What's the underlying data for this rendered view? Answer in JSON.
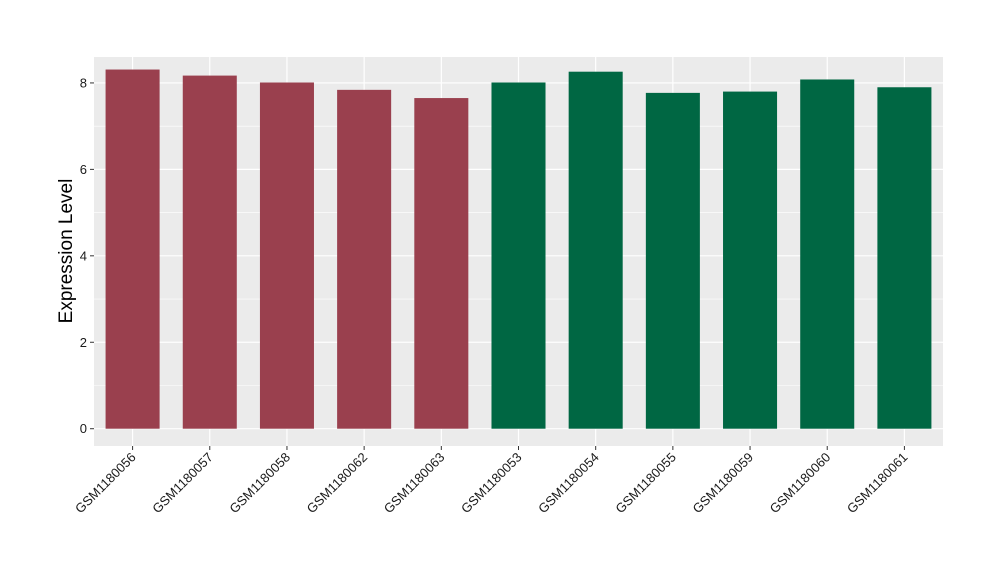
{
  "chart_data": {
    "type": "bar",
    "title": "",
    "xlabel": "",
    "ylabel": "Expression Level",
    "ylim": [
      -0.4,
      8.6
    ],
    "yticks": [
      0,
      2,
      4,
      6,
      8
    ],
    "grid": true,
    "categories": [
      "GSM1180056",
      "GSM1180057",
      "GSM1180058",
      "GSM1180062",
      "GSM1180063",
      "GSM1180053",
      "GSM1180054",
      "GSM1180055",
      "GSM1180059",
      "GSM1180060",
      "GSM1180061"
    ],
    "values": [
      8.31,
      8.17,
      8.01,
      7.84,
      7.65,
      8.01,
      8.26,
      7.77,
      7.8,
      8.08,
      7.9
    ],
    "bar_colors": [
      "#9a404e",
      "#9a404e",
      "#9a404e",
      "#9a404e",
      "#9a404e",
      "#006743",
      "#006743",
      "#006743",
      "#006743",
      "#006743",
      "#006743"
    ]
  },
  "colors": {
    "panel_background": "#ebebeb",
    "grid_line": "#ffffff",
    "group_a": "#9a404e",
    "group_b": "#006743"
  }
}
